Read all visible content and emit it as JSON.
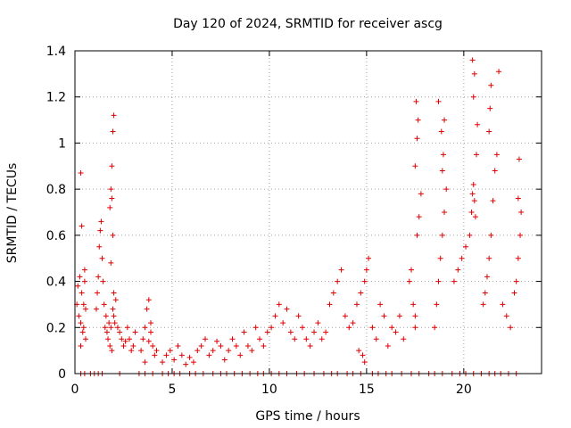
{
  "chart_data": {
    "type": "scatter",
    "title": "Day 120 of 2024, SRMTID for receiver ascg",
    "xlabel": "GPS time / hours",
    "ylabel": "SRMTID / TECUs",
    "xlim": [
      0,
      24
    ],
    "ylim": [
      0,
      1.4
    ],
    "xticks": [
      0,
      5,
      10,
      15,
      20
    ],
    "yticks": [
      0,
      0.2,
      0.4,
      0.6,
      0.8,
      1,
      1.2,
      1.4
    ],
    "xtick_labels": [
      "0",
      "5",
      "10",
      "15",
      "20"
    ],
    "ytick_labels": [
      "0",
      "0.2",
      "0.4",
      "0.6",
      "0.8",
      "1",
      "1.2",
      "1.4"
    ],
    "grid": true,
    "marker": "+",
    "color": "#e00000",
    "series": [
      {
        "name": "SRMTID",
        "x": [
          0.1,
          0.15,
          0.2,
          0.25,
          0.3,
          0.35,
          0.4,
          0.45,
          0.5,
          0.55,
          0.3,
          0.35,
          0.5,
          0.3,
          0.45,
          0.55,
          1.1,
          1.15,
          1.2,
          1.25,
          1.3,
          1.35,
          1.4,
          1.45,
          1.5,
          1.55,
          1.6,
          1.65,
          1.7,
          1.75,
          1.8,
          1.85,
          1.9,
          1.95,
          2.0,
          2.05,
          2.1,
          2.2,
          2.3,
          2.4,
          2.5,
          2.6,
          2.7,
          2.8,
          2.9,
          3.0,
          3.1,
          1.8,
          1.85,
          1.9,
          1.95,
          2.0,
          1.9,
          1.95,
          1.85,
          2.0,
          3.4,
          3.5,
          3.6,
          3.7,
          3.8,
          3.9,
          4.0,
          4.1,
          4.2,
          3.6,
          3.8,
          3.9,
          4.5,
          4.7,
          4.9,
          5.1,
          5.3,
          5.5,
          5.7,
          5.9,
          6.1,
          6.3,
          6.5,
          6.7,
          6.9,
          7.1,
          7.3,
          7.5,
          7.7,
          7.9,
          8.1,
          8.3,
          8.5,
          8.7,
          8.9,
          9.1,
          9.3,
          9.5,
          9.7,
          9.9,
          10.1,
          10.3,
          10.5,
          10.7,
          10.9,
          11.1,
          11.3,
          11.5,
          11.7,
          11.9,
          12.1,
          12.3,
          12.5,
          12.7,
          12.9,
          13.1,
          13.3,
          13.5,
          13.7,
          13.9,
          14.1,
          14.3,
          14.5,
          14.7,
          14.9,
          15.0,
          15.1,
          15.3,
          15.5,
          15.7,
          15.9,
          16.1,
          16.3,
          16.5,
          16.7,
          16.9,
          14.6,
          14.8,
          14.9,
          17.2,
          17.3,
          17.4,
          17.5,
          17.6,
          17.7,
          17.8,
          17.5,
          17.6,
          17.65,
          17.55,
          17.5,
          18.5,
          18.6,
          18.7,
          18.8,
          18.9,
          19.0,
          19.1,
          18.9,
          18.95,
          18.85,
          19.0,
          18.7,
          19.5,
          19.7,
          19.9,
          20.1,
          20.3,
          20.4,
          20.45,
          20.5,
          20.55,
          20.6,
          20.65,
          20.7,
          20.5,
          20.55,
          20.45,
          21.0,
          21.1,
          21.2,
          21.3,
          21.4,
          21.5,
          21.6,
          21.7,
          21.3,
          21.35,
          21.4,
          21.8,
          22.0,
          22.2,
          22.4,
          22.6,
          22.7,
          22.8,
          22.9,
          22.95,
          22.8,
          22.85
        ],
        "y": [
          0.3,
          0.38,
          0.25,
          0.42,
          0.22,
          0.35,
          0.18,
          0.3,
          0.4,
          0.28,
          0.87,
          0.64,
          0.45,
          0.12,
          0.2,
          0.15,
          0.28,
          0.35,
          0.42,
          0.55,
          0.62,
          0.66,
          0.5,
          0.4,
          0.3,
          0.2,
          0.25,
          0.18,
          0.15,
          0.22,
          0.12,
          0.2,
          0.1,
          0.28,
          0.25,
          0.22,
          0.32,
          0.2,
          0.18,
          0.15,
          0.12,
          0.14,
          0.2,
          0.15,
          0.1,
          0.12,
          0.18,
          0.72,
          0.8,
          0.9,
          1.05,
          1.12,
          0.76,
          0.6,
          0.48,
          0.35,
          0.1,
          0.15,
          0.2,
          0.28,
          0.32,
          0.22,
          0.12,
          0.08,
          0.1,
          0.05,
          0.14,
          0.18,
          0.05,
          0.08,
          0.1,
          0.06,
          0.12,
          0.08,
          0.04,
          0.07,
          0.05,
          0.1,
          0.12,
          0.15,
          0.08,
          0.1,
          0.14,
          0.12,
          0.06,
          0.1,
          0.15,
          0.12,
          0.08,
          0.18,
          0.12,
          0.1,
          0.2,
          0.15,
          0.12,
          0.18,
          0.2,
          0.25,
          0.3,
          0.22,
          0.28,
          0.18,
          0.15,
          0.25,
          0.2,
          0.15,
          0.12,
          0.18,
          0.22,
          0.15,
          0.18,
          0.3,
          0.35,
          0.4,
          0.45,
          0.25,
          0.2,
          0.22,
          0.3,
          0.35,
          0.4,
          0.45,
          0.5,
          0.2,
          0.15,
          0.3,
          0.25,
          0.12,
          0.2,
          0.18,
          0.25,
          0.15,
          0.1,
          0.08,
          0.05,
          0.4,
          0.45,
          0.3,
          0.25,
          0.6,
          0.68,
          0.78,
          0.9,
          1.02,
          1.1,
          1.18,
          0.2,
          0.2,
          0.3,
          0.4,
          0.5,
          0.6,
          0.7,
          0.8,
          0.88,
          0.95,
          1.05,
          1.1,
          1.18,
          0.4,
          0.45,
          0.5,
          0.55,
          0.6,
          0.7,
          0.78,
          0.82,
          0.75,
          0.68,
          0.95,
          1.08,
          1.2,
          1.3,
          1.36,
          0.3,
          0.35,
          0.42,
          0.5,
          0.6,
          0.75,
          0.88,
          0.95,
          1.05,
          1.15,
          1.25,
          1.31,
          0.3,
          0.25,
          0.2,
          0.35,
          0.4,
          0.5,
          0.6,
          0.7,
          0.76,
          0.93
        ],
        "zero_x": [
          0.3,
          0.5,
          0.8,
          1.0,
          1.2,
          1.4,
          2.3,
          3.3,
          3.6,
          4.0,
          4.5,
          4.8,
          5.1,
          5.4,
          5.9,
          6.2,
          6.6,
          7.1,
          7.5,
          7.8,
          8.2,
          8.6,
          9.0,
          9.4,
          9.7,
          10.1,
          10.5,
          10.9,
          11.4,
          11.8,
          12.3,
          12.8,
          13.2,
          13.5,
          14.0,
          14.3,
          14.7,
          15.3,
          15.6,
          16.0,
          16.3,
          16.8,
          17.3,
          17.7,
          18.2,
          18.5,
          18.9,
          19.4,
          19.8,
          20.1,
          20.5,
          20.9,
          21.3,
          21.6,
          21.9,
          22.3,
          22.7
        ]
      }
    ]
  }
}
